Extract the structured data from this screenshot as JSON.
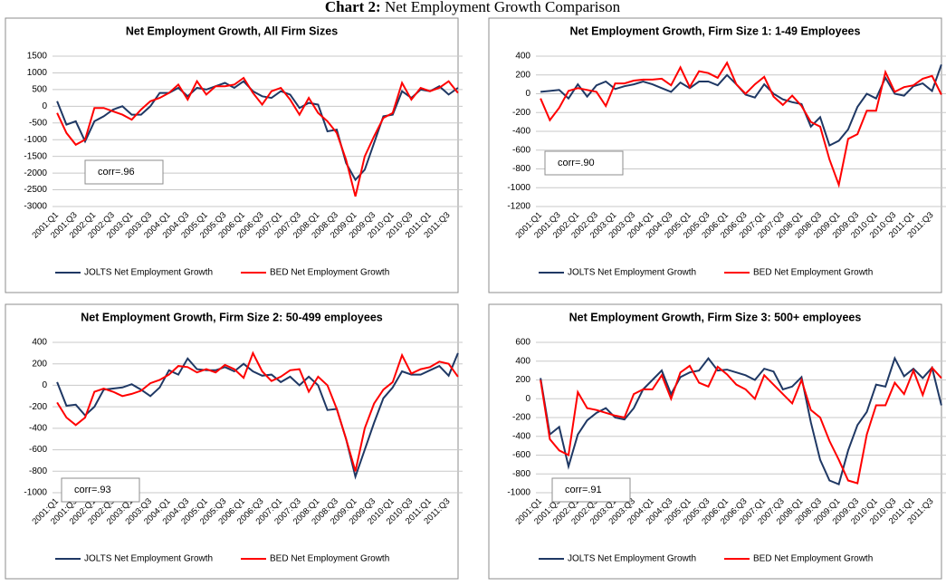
{
  "title_label": "Chart 2:",
  "title": "Net Employment Growth Comparison",
  "chart_data": [
    {
      "type": "line",
      "title": "Net Employment Growth, All Firm Sizes",
      "categories": [
        "2001:Q1",
        null,
        "2001:Q3",
        null,
        "2002:Q1",
        null,
        "2002:Q3",
        null,
        "2003:Q1",
        null,
        "2003:Q3",
        null,
        "2004:Q1",
        null,
        "2004:Q3",
        null,
        "2005:Q1",
        null,
        "2005:Q3",
        null,
        "2006:Q1",
        null,
        "2006:Q3",
        null,
        "2007:Q1",
        null,
        "2007:Q3",
        null,
        "2008:Q1",
        null,
        "2008:Q3",
        null,
        "2009:Q1",
        null,
        "2009:Q3",
        null,
        "2010:Q1",
        null,
        "2010:Q3",
        null,
        "2011:Q1",
        null,
        "2011:Q3",
        null
      ],
      "series": [
        {
          "name": "JOLTS Net Employment Growth",
          "color": "#1f3864",
          "values": [
            150,
            -550,
            -450,
            -1050,
            -450,
            -300,
            -100,
            0,
            -250,
            -250,
            0,
            400,
            400,
            550,
            300,
            550,
            500,
            600,
            700,
            550,
            750,
            450,
            300,
            250,
            450,
            350,
            -50,
            100,
            50,
            -750,
            -700,
            -1700,
            -2200,
            -1900,
            -1100,
            -300,
            -250,
            450,
            250,
            500,
            450,
            600,
            350,
            550
          ]
        },
        {
          "name": "BED Net Employment Growth",
          "color": "#ff0000",
          "values": [
            -200,
            -800,
            -1150,
            -1000,
            -50,
            -50,
            -150,
            -250,
            -400,
            -100,
            150,
            250,
            400,
            650,
            200,
            750,
            350,
            600,
            600,
            650,
            850,
            400,
            50,
            450,
            550,
            200,
            -250,
            250,
            -200,
            -450,
            -800,
            -1600,
            -2700,
            -1500,
            -900,
            -350,
            -200,
            700,
            200,
            550,
            450,
            550,
            750,
            400
          ]
        }
      ],
      "ylim": [
        -3000,
        1500
      ],
      "yticks": [
        -3000,
        -2500,
        -2000,
        -1500,
        -1000,
        -500,
        0,
        500,
        1000,
        1500
      ],
      "grid": true,
      "legend": "bottom",
      "annotation": "corr=.96"
    },
    {
      "type": "line",
      "title": "Net Employment Growth, Firm Size 1: 1-49 Employees",
      "categories": [
        "2001:Q1",
        null,
        "2001:Q3",
        null,
        "2002:Q1",
        null,
        "2002:Q3",
        null,
        "2003:Q1",
        null,
        "2003:Q3",
        null,
        "2004:Q1",
        null,
        "2004:Q3",
        null,
        "2005:Q1",
        null,
        "2005:Q3",
        null,
        "2006:Q1",
        null,
        "2006:Q3",
        null,
        "2007:Q1",
        null,
        "2007:Q3",
        null,
        "2008:Q1",
        null,
        "2008:Q3",
        null,
        "2009:Q1",
        null,
        "2009:Q3",
        null,
        "2010:Q1",
        null,
        "2010:Q3",
        null,
        "2011:Q1",
        null,
        "2011:Q3",
        null
      ],
      "series": [
        {
          "name": "JOLTS Net Employment Growth",
          "color": "#1f3864",
          "values": [
            20,
            30,
            40,
            -50,
            100,
            -30,
            90,
            130,
            50,
            80,
            100,
            130,
            100,
            60,
            20,
            120,
            60,
            130,
            130,
            90,
            200,
            100,
            -10,
            -40,
            100,
            0,
            -60,
            -90,
            -110,
            -350,
            -250,
            -550,
            -500,
            -380,
            -140,
            0,
            -50,
            170,
            0,
            -20,
            80,
            110,
            30,
            310
          ]
        },
        {
          "name": "BED Net Employment Growth",
          "color": "#ff0000",
          "values": [
            -50,
            -280,
            -150,
            30,
            60,
            40,
            20,
            -130,
            110,
            110,
            140,
            150,
            150,
            160,
            90,
            280,
            70,
            240,
            220,
            170,
            330,
            100,
            0,
            100,
            180,
            -30,
            -120,
            -20,
            -130,
            -300,
            -350,
            -700,
            -970,
            -480,
            -430,
            -180,
            -180,
            230,
            20,
            70,
            90,
            160,
            190,
            -10
          ]
        }
      ],
      "ylim": [
        -1200,
        400
      ],
      "yticks": [
        -1200,
        -1000,
        -800,
        -600,
        -400,
        -200,
        0,
        200,
        400
      ],
      "grid": true,
      "legend": "bottom",
      "annotation": "corr=.90"
    },
    {
      "type": "line",
      "title": "Net Employment Growth, Firm Size 2: 50-499 employees",
      "categories": [
        "2001:Q1",
        null,
        "2001:Q3",
        null,
        "2002:Q1",
        null,
        "2002:Q3",
        null,
        "2003:Q1",
        null,
        "2003:Q3",
        null,
        "2004:Q1",
        null,
        "2004:Q3",
        null,
        "2005:Q1",
        null,
        "2005:Q3",
        null,
        "2006:Q1",
        null,
        "2006:Q3",
        null,
        "2007:Q1",
        null,
        "2007:Q3",
        null,
        "2008:Q1",
        null,
        "2008:Q3",
        null,
        "2009:Q1",
        null,
        "2009:Q3",
        null,
        "2010:Q1",
        null,
        "2010:Q3",
        null,
        "2011:Q1",
        null,
        "2011:Q3",
        null
      ],
      "series": [
        {
          "name": "JOLTS Net Employment Growth",
          "color": "#1f3864",
          "values": [
            30,
            -190,
            -180,
            -280,
            -200,
            -40,
            -30,
            -20,
            10,
            -40,
            -100,
            -20,
            140,
            100,
            250,
            150,
            140,
            140,
            170,
            130,
            200,
            130,
            90,
            100,
            30,
            80,
            0,
            80,
            0,
            -230,
            -220,
            -500,
            -850,
            -600,
            -350,
            -120,
            -20,
            130,
            100,
            100,
            140,
            180,
            90,
            300
          ]
        },
        {
          "name": "BED Net Employment Growth",
          "color": "#ff0000",
          "values": [
            -160,
            -300,
            -370,
            -300,
            -60,
            -30,
            -60,
            -100,
            -80,
            -50,
            20,
            50,
            100,
            180,
            170,
            120,
            150,
            120,
            190,
            150,
            70,
            300,
            130,
            40,
            80,
            140,
            150,
            -60,
            80,
            0,
            -220,
            -500,
            -800,
            -400,
            -170,
            -40,
            30,
            280,
            110,
            150,
            170,
            220,
            200,
            80
          ]
        }
      ],
      "ylim": [
        -1000,
        400
      ],
      "yticks": [
        -1000,
        -800,
        -600,
        -400,
        -200,
        0,
        200,
        400
      ],
      "grid": true,
      "legend": "bottom",
      "annotation": "corr=.93"
    },
    {
      "type": "line",
      "title": "Net Employment Growth, Firm Size 3: 500+ employees",
      "categories": [
        "2001:Q1",
        null,
        "2001:Q3",
        null,
        "2002:Q1",
        null,
        "2002:Q3",
        null,
        "2003:Q1",
        null,
        "2003:Q3",
        null,
        "2004:Q1",
        null,
        "2004:Q3",
        null,
        "2005:Q1",
        null,
        "2005:Q3",
        null,
        "2006:Q1",
        null,
        "2006:Q3",
        null,
        "2007:Q1",
        null,
        "2007:Q3",
        null,
        "2008:Q1",
        null,
        "2008:Q3",
        null,
        "2009:Q1",
        null,
        "2009:Q3",
        null,
        "2010:Q1",
        null,
        "2010:Q3",
        null,
        "2011:Q1",
        null,
        "2011:Q3",
        null
      ],
      "series": [
        {
          "name": "JOLTS Net Employment Growth",
          "color": "#1f3864",
          "values": [
            220,
            -380,
            -300,
            -720,
            -380,
            -230,
            -150,
            -100,
            -200,
            -220,
            -100,
            100,
            200,
            300,
            50,
            230,
            280,
            300,
            430,
            300,
            310,
            280,
            250,
            200,
            320,
            290,
            100,
            130,
            230,
            -250,
            -650,
            -870,
            -910,
            -550,
            -280,
            -140,
            150,
            130,
            430,
            240,
            320,
            220,
            330,
            -70
          ]
        },
        {
          "name": "BED Net Employment Growth",
          "color": "#ff0000",
          "values": [
            200,
            -430,
            -550,
            -600,
            70,
            -100,
            -120,
            -150,
            -180,
            -200,
            50,
            100,
            100,
            250,
            0,
            280,
            350,
            170,
            130,
            340,
            260,
            150,
            100,
            0,
            250,
            150,
            50,
            -50,
            200,
            -120,
            -200,
            -450,
            -650,
            -870,
            -900,
            -380,
            -70,
            -70,
            170,
            50,
            300,
            40,
            330,
            220
          ]
        }
      ],
      "ylim": [
        -1000,
        600
      ],
      "yticks": [
        -1000,
        -800,
        -600,
        -400,
        -200,
        0,
        200,
        400,
        600
      ],
      "grid": true,
      "legend": "bottom",
      "annotation": "corr=.91"
    }
  ]
}
